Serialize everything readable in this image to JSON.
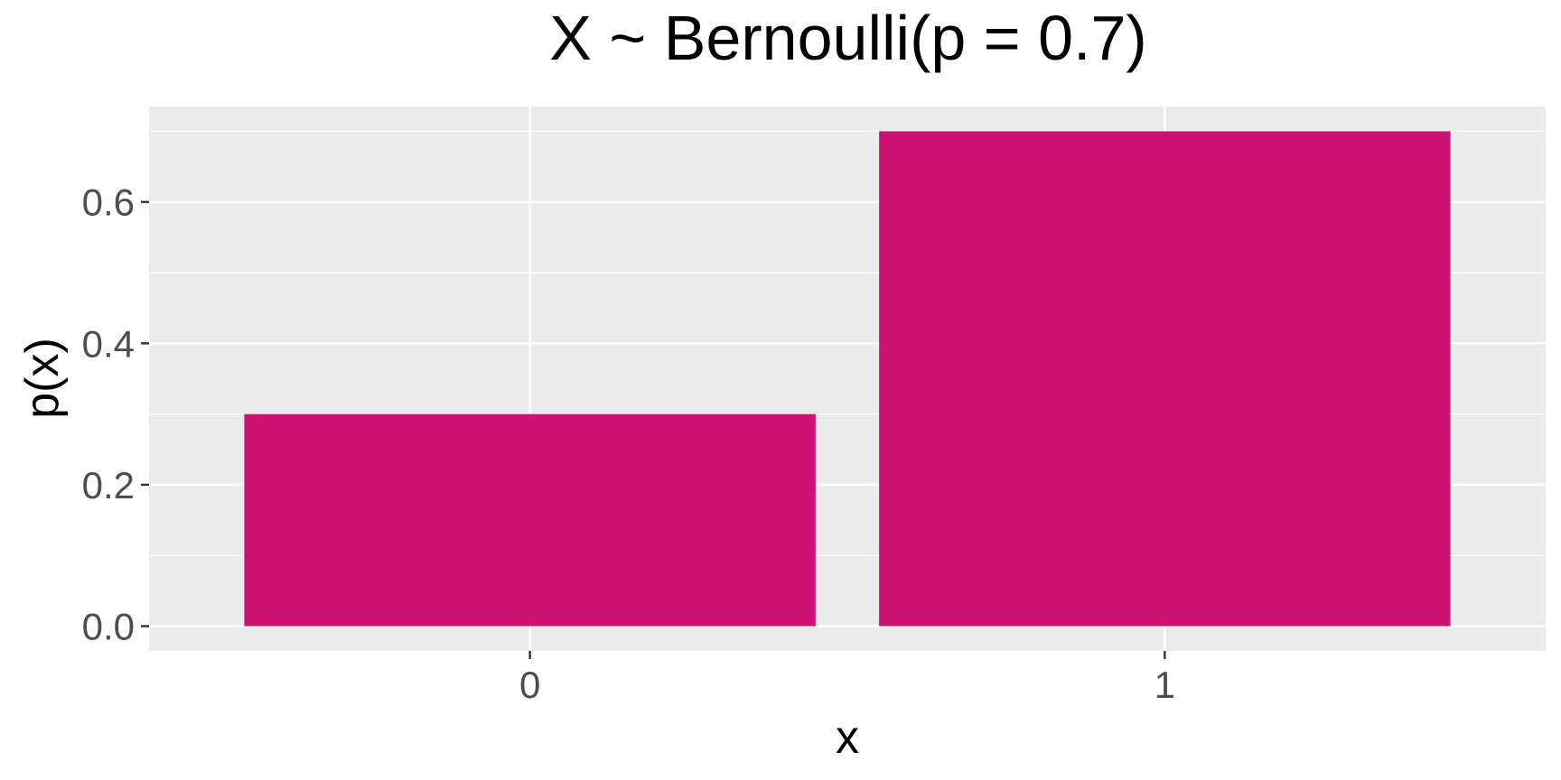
{
  "chart_data": {
    "type": "bar",
    "title": "X ~ Bernoulli(p = 0.7)",
    "xlabel": "x",
    "ylabel": "p(x)",
    "categories": [
      "0",
      "1"
    ],
    "values": [
      0.3,
      0.7
    ],
    "ylim": [
      -0.035,
      0.735
    ],
    "yticks": [
      0.0,
      0.2,
      0.4,
      0.6
    ],
    "ytick_labels": [
      "0.0",
      "0.2",
      "0.4",
      "0.6"
    ],
    "bar_color": "#CE1273",
    "panel_background": "#EBEBEB",
    "grid_color": "#FFFFFF",
    "grid": true,
    "legend": "none"
  }
}
